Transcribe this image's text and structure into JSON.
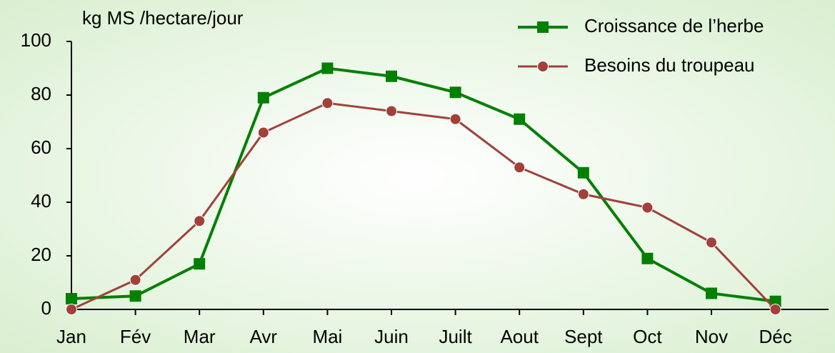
{
  "chart_data": {
    "type": "line",
    "axis_label": "kg MS /hectare/jour",
    "categories": [
      "Jan",
      "Fév",
      "Mar",
      "Avr",
      "Mai",
      "Juin",
      "Juilt",
      "Aout",
      "Sept",
      "Oct",
      "Nov",
      "Déc"
    ],
    "series": [
      {
        "name": "Croissance de l’herbe",
        "color": "#008000",
        "marker": "square",
        "values": [
          4,
          5,
          17,
          79,
          90,
          87,
          81,
          71,
          51,
          19,
          6,
          3
        ]
      },
      {
        "name": "Besoins du troupeau",
        "color": "#a0413a",
        "marker": "circle",
        "values": [
          0,
          11,
          33,
          66,
          77,
          74,
          71,
          53,
          43,
          38,
          25,
          0
        ]
      }
    ],
    "ylim": [
      0,
      100
    ],
    "yticks": [
      0,
      20,
      40,
      60,
      80,
      100
    ],
    "legend": "top-right"
  }
}
